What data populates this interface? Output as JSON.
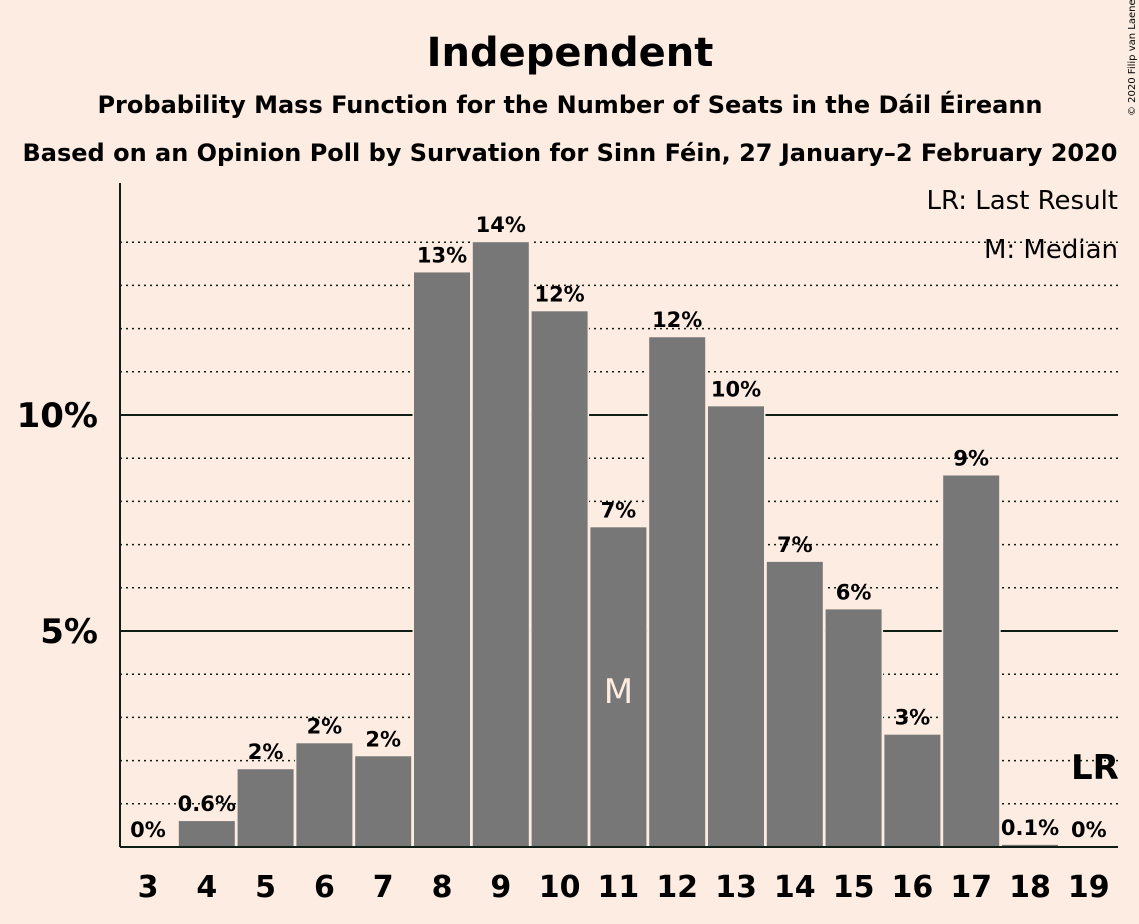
{
  "chart_data": {
    "type": "bar",
    "title": "Independent",
    "subtitle_1": "Probability Mass Function for the Number of Seats in the Dáil Éireann",
    "subtitle_2": "Based on an Opinion Poll by Survation for Sinn Féin, 27 January–2 February 2020",
    "copyright": "© 2020 Filip van Laenen",
    "legend": {
      "last_result": "LR: Last Result",
      "median": "M: Median"
    },
    "categories": [
      "3",
      "4",
      "5",
      "6",
      "7",
      "8",
      "9",
      "10",
      "11",
      "12",
      "13",
      "14",
      "15",
      "16",
      "17",
      "18",
      "19"
    ],
    "values": [
      0,
      0.6,
      1.8,
      2.4,
      2.1,
      13.3,
      14.0,
      12.4,
      7.4,
      11.8,
      10.2,
      6.6,
      5.5,
      2.6,
      8.6,
      0.05,
      0
    ],
    "value_labels": [
      "0%",
      "0.6%",
      "2%",
      "2%",
      "2%",
      "13%",
      "14%",
      "12%",
      "7%",
      "12%",
      "10%",
      "7%",
      "6%",
      "3%",
      "9%",
      "0.1%",
      "0%"
    ],
    "yticks": [
      {
        "value": 5,
        "label": "5%"
      },
      {
        "value": 10,
        "label": "10%"
      }
    ],
    "ylim": [
      0,
      15.4
    ],
    "median_category": "11",
    "median_marker": "M",
    "last_result_category": "19",
    "last_result_marker": "LR",
    "bar_color": "#777777",
    "background": "#fdece1"
  }
}
